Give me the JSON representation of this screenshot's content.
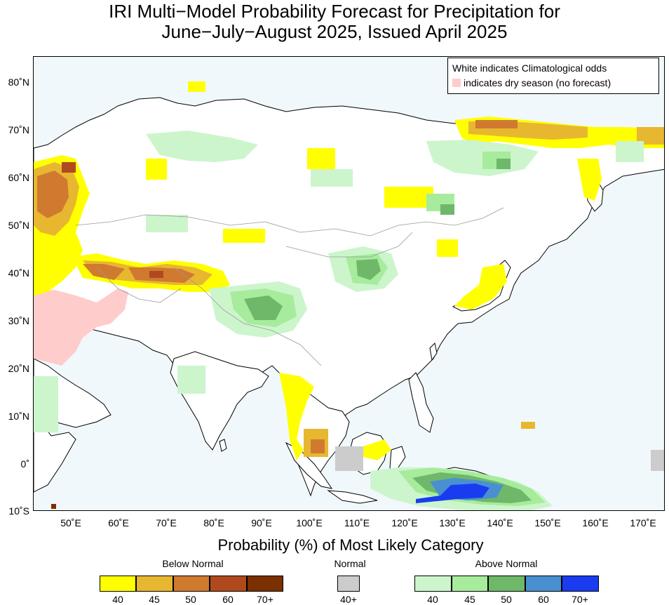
{
  "title": {
    "line1": "IRI Multi−Model Probability Forecast for Precipitation for",
    "line2": "June−July−August 2025, Issued April 2025"
  },
  "map": {
    "lat_range": [
      -10,
      85
    ],
    "lon_range": [
      42,
      174
    ],
    "lat_ticks": [
      "80˚N",
      "70˚N",
      "60˚N",
      "50˚N",
      "40˚N",
      "30˚N",
      "20˚N",
      "10˚N",
      "0˚",
      "10˚S"
    ],
    "lon_ticks": [
      "50˚E",
      "60˚E",
      "70˚E",
      "80˚E",
      "90˚E",
      "100˚E",
      "110˚E",
      "120˚E",
      "130˚E",
      "140˚E",
      "150˚E",
      "160˚E",
      "170˚E"
    ],
    "ocean_color": "#f0f8fc",
    "land_color": "#ffffff"
  },
  "legend": {
    "line1": "White indicates Climatological odds",
    "line2": "indicates dry season (no forecast)",
    "dry_season_color": "#ffcccc"
  },
  "colorbar": {
    "title": "Probability (%) of Most Likely Category",
    "below_normal": {
      "label": "Below Normal",
      "ticks": [
        "40",
        "45",
        "50",
        "60",
        "70+"
      ],
      "colors": [
        "#ffff00",
        "#e8b730",
        "#d07a30",
        "#b04a1e",
        "#7a3000"
      ]
    },
    "normal": {
      "label": "Normal",
      "ticks": [
        "40+"
      ],
      "colors": [
        "#cccccc"
      ]
    },
    "above_normal": {
      "label": "Above Normal",
      "ticks": [
        "40",
        "45",
        "50",
        "60",
        "70+"
      ],
      "colors": [
        "#ccf5cc",
        "#a6ec9c",
        "#6fb86a",
        "#4a90d0",
        "#1a3cf0"
      ]
    }
  }
}
